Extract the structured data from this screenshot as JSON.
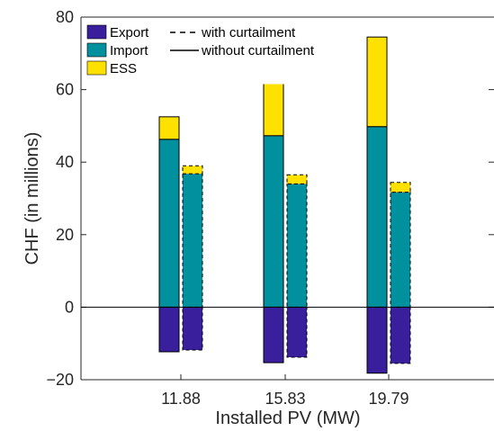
{
  "chart_data": {
    "type": "bar",
    "categories": [
      "11.88",
      "15.83",
      "19.79"
    ],
    "xlabel": "Installed PV (MW)",
    "ylabel": "CHF (in millions)",
    "ylim": [
      -20,
      80
    ],
    "yticks": [
      -20,
      0,
      20,
      40,
      60,
      80
    ],
    "grid": false,
    "legend_position": "top-left",
    "legend": {
      "series_labels": [
        "Export",
        "Import",
        "ESS"
      ],
      "style_labels": [
        "with curtailment",
        "without curtailment"
      ]
    },
    "colors": {
      "Export": "#3a1f9c",
      "Import": "#00909e",
      "ESS": "#ffe100"
    },
    "groups": [
      {
        "label": "without curtailment",
        "style": "solid",
        "series": [
          {
            "name": "Export",
            "values": [
              -12.3,
              -15.3,
              -18.2
            ]
          },
          {
            "name": "Import",
            "values": [
              46.3,
              47.3,
              49.8
            ]
          },
          {
            "name": "ESS",
            "values": [
              6.2,
              14.9,
              24.7
            ]
          }
        ]
      },
      {
        "label": "with curtailment",
        "style": "dashed",
        "series": [
          {
            "name": "Export",
            "values": [
              -11.8,
              -13.8,
              -15.5
            ]
          },
          {
            "name": "Import",
            "values": [
              36.8,
              34.0,
              31.7
            ]
          },
          {
            "name": "ESS",
            "values": [
              2.2,
              2.5,
              2.7
            ]
          }
        ]
      }
    ]
  }
}
